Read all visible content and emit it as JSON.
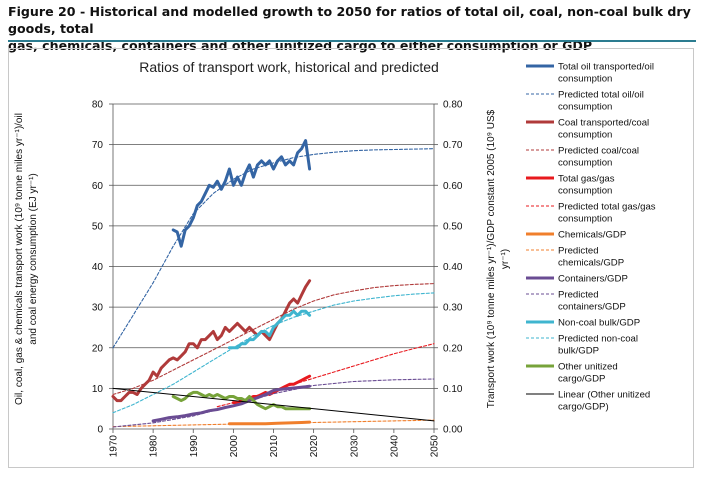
{
  "caption": {
    "line1": "Figure 20 - Historical and modelled growth to 2050 for ratios of total oil, coal, non-coal bulk dry goods, total",
    "line2": "gas, chemicals, containers and other unitized cargo to either consumption or GDP"
  },
  "chart_data": {
    "type": "line",
    "title": "Ratios of transport work, historical and predicted",
    "ylabel_left_line1": "Oil, coal, gas & chemicals transport work (10⁹ tonne miles yr⁻¹)/oil",
    "ylabel_left_line2": "and coal energy consumption (EJ yr⁻¹)",
    "ylabel_right_line1": "Transport work (10⁹ tonne miles yr⁻¹)/GDP constant 2005 (10⁹ US$",
    "ylabel_right_line2": "yr⁻¹)",
    "xlim": [
      1970,
      2050
    ],
    "ylim_left": [
      0,
      80
    ],
    "ylim_right": [
      0,
      0.8
    ],
    "x_ticks": [
      "1970",
      "1980",
      "1990",
      "2000",
      "2010",
      "2020",
      "2030",
      "2040",
      "2050"
    ],
    "y_ticks_left": [
      "0",
      "10",
      "20",
      "30",
      "40",
      "50",
      "60",
      "70",
      "80"
    ],
    "y_ticks_right": [
      "0.00",
      "0.10",
      "0.20",
      "0.30",
      "0.40",
      "0.50",
      "0.60",
      "0.70",
      "0.80"
    ],
    "grid": "horizontal",
    "legend_position": "right",
    "series": [
      {
        "name": "Total oil transported/oil consumption",
        "legend_lines": [
          "Total oil transported/oil",
          "consumption"
        ],
        "color": "#3465a4",
        "style": "solid",
        "axis": "left",
        "x": [
          1985,
          1986,
          1987,
          1988,
          1989,
          1990,
          1991,
          1992,
          1993,
          1994,
          1995,
          1996,
          1997,
          1998,
          1999,
          2000,
          2001,
          2002,
          2003,
          2004,
          2005,
          2006,
          2007,
          2008,
          2009,
          2010,
          2011,
          2012,
          2013,
          2014,
          2015,
          2016,
          2017,
          2018,
          2019
        ],
        "y": [
          49,
          48.5,
          45,
          49,
          50,
          52,
          55,
          56,
          58,
          60,
          59.5,
          61,
          59,
          61,
          64,
          60,
          62,
          60,
          63,
          65,
          62,
          65,
          66,
          65,
          66,
          64,
          66,
          67,
          65,
          66,
          65,
          68,
          69,
          71,
          64
        ]
      },
      {
        "name": "Predicted total oil/oil consumption",
        "legend_lines": [
          "Predicted total oil/oil",
          "consumption"
        ],
        "color": "#3465a4",
        "style": "dashed",
        "axis": "left",
        "x": [
          1970,
          1975,
          1980,
          1985,
          1990,
          1995,
          2000,
          2005,
          2010,
          2015,
          2020,
          2025,
          2030,
          2035,
          2040,
          2045,
          2050
        ],
        "y": [
          20,
          28,
          36,
          45,
          53,
          58,
          61.5,
          64,
          65.5,
          66.8,
          67.6,
          68.1,
          68.5,
          68.7,
          68.8,
          68.9,
          69
        ]
      },
      {
        "name": "Coal transported/coal consumption",
        "legend_lines": [
          "Coal transported/coal",
          "consumption"
        ],
        "color": "#b03a3a",
        "style": "solid",
        "axis": "left",
        "x": [
          1970,
          1971,
          1972,
          1973,
          1974,
          1975,
          1976,
          1977,
          1978,
          1979,
          1980,
          1981,
          1982,
          1983,
          1984,
          1985,
          1986,
          1987,
          1988,
          1989,
          1990,
          1991,
          1992,
          1993,
          1994,
          1995,
          1996,
          1997,
          1998,
          1999,
          2000,
          2001,
          2002,
          2003,
          2004,
          2005,
          2006,
          2007,
          2008,
          2009,
          2010,
          2011,
          2012,
          2013,
          2014,
          2015,
          2016,
          2017,
          2018,
          2019
        ],
        "y": [
          8,
          7,
          7,
          8,
          9,
          9,
          8.5,
          10,
          11,
          12,
          14,
          13,
          15,
          16,
          17,
          17.5,
          17,
          18,
          19,
          21,
          21,
          20,
          22,
          22,
          23,
          24,
          22,
          23,
          25,
          24,
          25,
          26,
          25,
          24,
          25,
          24,
          23,
          24,
          23,
          22,
          24,
          26,
          27,
          29,
          31,
          32,
          31,
          33,
          35,
          36.5
        ]
      },
      {
        "name": "Predicted coal/coal consumption",
        "legend_lines": [
          "Predicted coal/coal",
          "consumption"
        ],
        "color": "#b03a3a",
        "style": "dashed",
        "axis": "left",
        "x": [
          1970,
          1975,
          1980,
          1985,
          1990,
          1995,
          2000,
          2005,
          2010,
          2015,
          2020,
          2025,
          2030,
          2035,
          2040,
          2045,
          2050
        ],
        "y": [
          8.5,
          10,
          12,
          14.5,
          17,
          19.5,
          22,
          24.5,
          27,
          29.5,
          31.5,
          33,
          34,
          34.8,
          35.3,
          35.6,
          35.8
        ]
      },
      {
        "name": "Total gas/gas consumption",
        "legend_lines": [
          "Total gas/gas",
          "consumption"
        ],
        "color": "#e8191e",
        "style": "solid",
        "axis": "left",
        "x": [
          2000,
          2001,
          2002,
          2003,
          2004,
          2005,
          2006,
          2007,
          2008,
          2009,
          2010,
          2011,
          2012,
          2013,
          2014,
          2015,
          2016,
          2017,
          2018,
          2019
        ],
        "y": [
          6.5,
          6.5,
          7,
          7,
          7.5,
          8,
          8,
          8.5,
          9,
          8.5,
          9,
          9.5,
          10,
          10.5,
          11,
          11,
          11.5,
          12,
          12.5,
          13
        ]
      },
      {
        "name": "Predicted total gas/gas consumption",
        "legend_lines": [
          "Predicted total gas/gas",
          "consumption"
        ],
        "color": "#e8191e",
        "style": "dashed",
        "axis": "left",
        "x": [
          1996,
          2000,
          2005,
          2010,
          2015,
          2020,
          2025,
          2030,
          2035,
          2040,
          2045,
          2050
        ],
        "y": [
          5.5,
          6.5,
          8,
          9.5,
          11,
          12.5,
          14,
          15.5,
          17,
          18.5,
          19.8,
          21
        ]
      },
      {
        "name": "Chemicals/GDP",
        "legend_lines": [
          "Chemicals/GDP"
        ],
        "color": "#f07f2c",
        "style": "solid",
        "axis": "right",
        "x": [
          1999,
          2002,
          2005,
          2008,
          2011,
          2014,
          2017,
          2019
        ],
        "y": [
          0.013,
          0.013,
          0.013,
          0.013,
          0.014,
          0.015,
          0.016,
          0.017
        ]
      },
      {
        "name": "Predicted chemicals/GDP",
        "legend_lines": [
          "Predicted",
          "chemicals/GDP"
        ],
        "color": "#f07f2c",
        "style": "dashed",
        "axis": "right",
        "x": [
          1970,
          1980,
          1990,
          2000,
          2010,
          2020,
          2030,
          2040,
          2050
        ],
        "y": [
          0.006,
          0.008,
          0.01,
          0.012,
          0.014,
          0.016,
          0.018,
          0.02,
          0.022
        ]
      },
      {
        "name": "Containers/GDP",
        "legend_lines": [
          "Containers/GDP"
        ],
        "color": "#6a4c93",
        "style": "solid",
        "axis": "right",
        "x": [
          1980,
          1982,
          1984,
          1986,
          1988,
          1990,
          1992,
          1994,
          1996,
          1998,
          2000,
          2002,
          2004,
          2006,
          2008,
          2010,
          2012,
          2014,
          2016,
          2018,
          2019
        ],
        "y": [
          0.02,
          0.024,
          0.028,
          0.03,
          0.033,
          0.037,
          0.04,
          0.045,
          0.048,
          0.053,
          0.057,
          0.062,
          0.07,
          0.077,
          0.085,
          0.095,
          0.098,
          0.1,
          0.102,
          0.104,
          0.105
        ]
      },
      {
        "name": "Predicted containers/GDP",
        "legend_lines": [
          "Predicted",
          "containers/GDP"
        ],
        "color": "#6a4c93",
        "style": "dashed",
        "axis": "right",
        "x": [
          1970,
          1980,
          1990,
          2000,
          2010,
          2020,
          2030,
          2040,
          2050
        ],
        "y": [
          0.005,
          0.015,
          0.032,
          0.058,
          0.087,
          0.107,
          0.117,
          0.121,
          0.123
        ]
      },
      {
        "name": "Non-coal bulk/GDP",
        "legend_lines": [
          "Non-coal bulk/GDP"
        ],
        "color": "#3fb5cf",
        "style": "solid",
        "axis": "right",
        "x": [
          1999,
          2000,
          2001,
          2002,
          2003,
          2004,
          2005,
          2006,
          2007,
          2008,
          2009,
          2010,
          2011,
          2012,
          2013,
          2014,
          2015,
          2016,
          2017,
          2018,
          2019
        ],
        "y": [
          0.2,
          0.2,
          0.2,
          0.21,
          0.21,
          0.22,
          0.22,
          0.23,
          0.24,
          0.24,
          0.23,
          0.25,
          0.26,
          0.27,
          0.28,
          0.28,
          0.29,
          0.28,
          0.29,
          0.29,
          0.28
        ]
      },
      {
        "name": "Predicted non-coal bulk/GDP",
        "legend_lines": [
          "Predicted non-coal",
          "bulk/GDP"
        ],
        "color": "#3fb5cf",
        "style": "dashed",
        "axis": "right",
        "x": [
          1970,
          1975,
          1980,
          1985,
          1990,
          1995,
          2000,
          2005,
          2010,
          2015,
          2020,
          2025,
          2030,
          2035,
          2040,
          2045,
          2050
        ],
        "y": [
          0.04,
          0.06,
          0.085,
          0.11,
          0.14,
          0.17,
          0.2,
          0.23,
          0.255,
          0.275,
          0.29,
          0.305,
          0.315,
          0.322,
          0.328,
          0.332,
          0.335
        ]
      },
      {
        "name": "Other unitized cargo/GDP",
        "legend_lines": [
          "Other unitized",
          "cargo/GDP"
        ],
        "color": "#77a33a",
        "style": "solid",
        "axis": "right",
        "x": [
          1985,
          1986,
          1987,
          1988,
          1989,
          1990,
          1991,
          1992,
          1993,
          1994,
          1995,
          1996,
          1997,
          1998,
          1999,
          2000,
          2001,
          2002,
          2003,
          2004,
          2005,
          2006,
          2007,
          2008,
          2009,
          2010,
          2011,
          2012,
          2013,
          2014,
          2015,
          2016,
          2017,
          2018,
          2019
        ],
        "y": [
          0.08,
          0.075,
          0.07,
          0.075,
          0.085,
          0.09,
          0.09,
          0.085,
          0.08,
          0.085,
          0.08,
          0.085,
          0.08,
          0.075,
          0.08,
          0.08,
          0.075,
          0.075,
          0.07,
          0.08,
          0.07,
          0.06,
          0.055,
          0.05,
          0.055,
          0.06,
          0.055,
          0.055,
          0.05,
          0.05,
          0.05,
          0.05,
          0.05,
          0.05,
          0.05
        ]
      },
      {
        "name": "Linear (Other unitized cargo/GDP)",
        "legend_lines": [
          "Linear (Other unitized",
          "cargo/GDP)"
        ],
        "color": "#000000",
        "style": "thin",
        "axis": "right",
        "x": [
          1970,
          2050
        ],
        "y": [
          0.1,
          0.02
        ]
      }
    ]
  }
}
